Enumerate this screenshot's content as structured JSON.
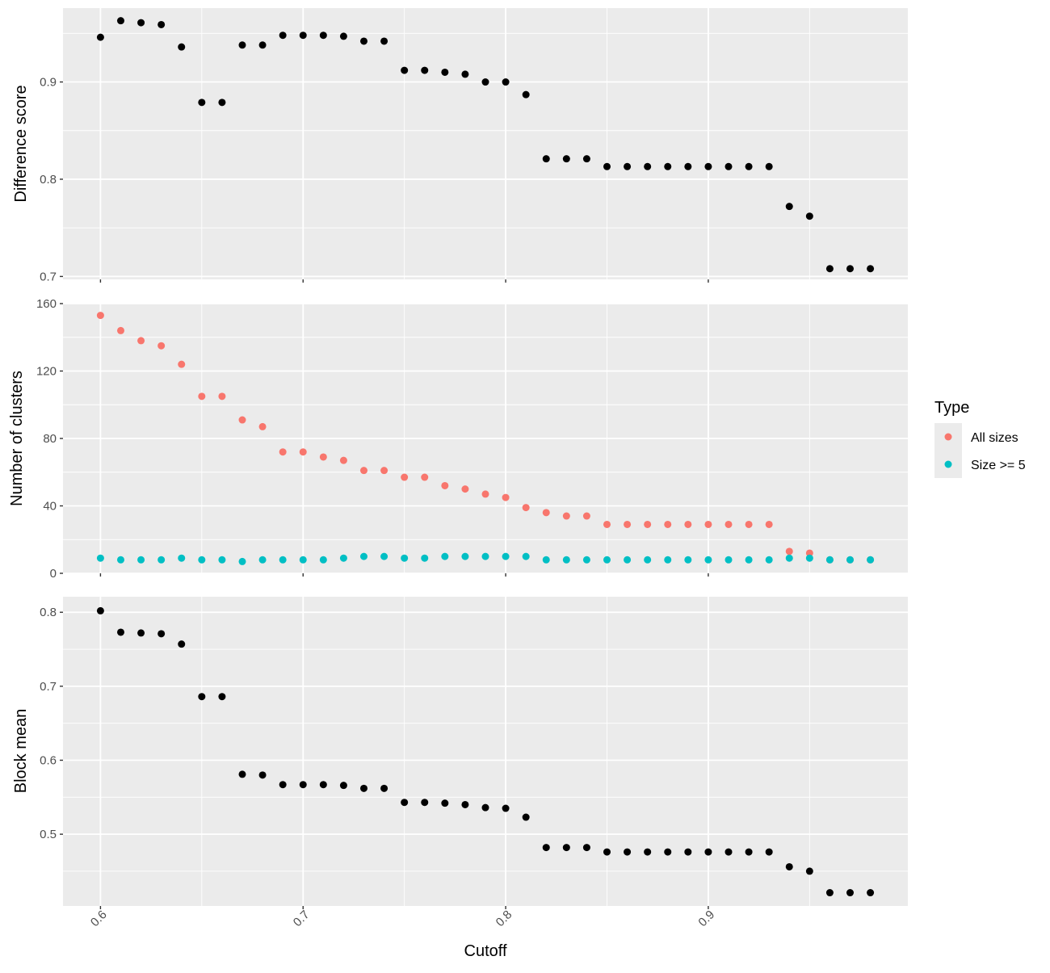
{
  "chart_data": [
    {
      "type": "scatter",
      "ylabel": "Difference score",
      "xlim": [
        0.5815,
        0.9985
      ],
      "ylim": [
        0.697,
        0.976
      ],
      "y_ticks": [
        0.7,
        0.8,
        0.9
      ],
      "y_tick_labels": [
        "0.7",
        "0.8",
        "0.9"
      ],
      "series": [
        {
          "color": "#000000",
          "points": [
            [
              0.6,
              0.946
            ],
            [
              0.61,
              0.963
            ],
            [
              0.62,
              0.961
            ],
            [
              0.63,
              0.959
            ],
            [
              0.64,
              0.936
            ],
            [
              0.65,
              0.879
            ],
            [
              0.66,
              0.879
            ],
            [
              0.67,
              0.938
            ],
            [
              0.68,
              0.938
            ],
            [
              0.69,
              0.948
            ],
            [
              0.7,
              0.948
            ],
            [
              0.71,
              0.948
            ],
            [
              0.72,
              0.947
            ],
            [
              0.73,
              0.942
            ],
            [
              0.74,
              0.942
            ],
            [
              0.75,
              0.912
            ],
            [
              0.76,
              0.912
            ],
            [
              0.77,
              0.91
            ],
            [
              0.78,
              0.908
            ],
            [
              0.79,
              0.9
            ],
            [
              0.8,
              0.9
            ],
            [
              0.81,
              0.887
            ],
            [
              0.82,
              0.821
            ],
            [
              0.83,
              0.821
            ],
            [
              0.84,
              0.821
            ],
            [
              0.85,
              0.813
            ],
            [
              0.86,
              0.813
            ],
            [
              0.87,
              0.813
            ],
            [
              0.88,
              0.813
            ],
            [
              0.89,
              0.813
            ],
            [
              0.9,
              0.813
            ],
            [
              0.91,
              0.813
            ],
            [
              0.92,
              0.813
            ],
            [
              0.93,
              0.813
            ],
            [
              0.94,
              0.772
            ],
            [
              0.95,
              0.762
            ],
            [
              0.96,
              0.708
            ],
            [
              0.97,
              0.708
            ],
            [
              0.98,
              0.708
            ]
          ]
        }
      ]
    },
    {
      "type": "scatter",
      "ylabel": "Number of clusters",
      "xlim": [
        0.5815,
        0.9985
      ],
      "ylim": [
        0,
        160
      ],
      "y_ticks": [
        0,
        40,
        80,
        120,
        160
      ],
      "y_tick_labels": [
        "0",
        "40",
        "80",
        "120",
        "160"
      ],
      "series": [
        {
          "name": "All sizes",
          "color": "#F8766D",
          "points": [
            [
              0.6,
              153
            ],
            [
              0.61,
              144
            ],
            [
              0.62,
              138
            ],
            [
              0.63,
              135
            ],
            [
              0.64,
              124
            ],
            [
              0.65,
              105
            ],
            [
              0.66,
              105
            ],
            [
              0.67,
              91
            ],
            [
              0.68,
              87
            ],
            [
              0.69,
              72
            ],
            [
              0.7,
              72
            ],
            [
              0.71,
              69
            ],
            [
              0.72,
              67
            ],
            [
              0.73,
              61
            ],
            [
              0.74,
              61
            ],
            [
              0.75,
              57
            ],
            [
              0.76,
              57
            ],
            [
              0.77,
              52
            ],
            [
              0.78,
              50
            ],
            [
              0.79,
              47
            ],
            [
              0.8,
              45
            ],
            [
              0.81,
              39
            ],
            [
              0.82,
              36
            ],
            [
              0.83,
              34
            ],
            [
              0.84,
              34
            ],
            [
              0.85,
              29
            ],
            [
              0.86,
              29
            ],
            [
              0.87,
              29
            ],
            [
              0.88,
              29
            ],
            [
              0.89,
              29
            ],
            [
              0.9,
              29
            ],
            [
              0.91,
              29
            ],
            [
              0.92,
              29
            ],
            [
              0.93,
              29
            ],
            [
              0.94,
              13
            ],
            [
              0.95,
              12
            ],
            [
              0.96,
              8
            ],
            [
              0.97,
              8
            ],
            [
              0.98,
              8
            ]
          ]
        },
        {
          "name": "Size >= 5",
          "color": "#00BFC4",
          "points": [
            [
              0.6,
              9
            ],
            [
              0.61,
              8
            ],
            [
              0.62,
              8
            ],
            [
              0.63,
              8
            ],
            [
              0.64,
              9
            ],
            [
              0.65,
              8
            ],
            [
              0.66,
              8
            ],
            [
              0.67,
              7
            ],
            [
              0.68,
              8
            ],
            [
              0.69,
              8
            ],
            [
              0.7,
              8
            ],
            [
              0.71,
              8
            ],
            [
              0.72,
              9
            ],
            [
              0.73,
              10
            ],
            [
              0.74,
              10
            ],
            [
              0.75,
              9
            ],
            [
              0.76,
              9
            ],
            [
              0.77,
              10
            ],
            [
              0.78,
              10
            ],
            [
              0.79,
              10
            ],
            [
              0.8,
              10
            ],
            [
              0.81,
              10
            ],
            [
              0.82,
              8
            ],
            [
              0.83,
              8
            ],
            [
              0.84,
              8
            ],
            [
              0.85,
              8
            ],
            [
              0.86,
              8
            ],
            [
              0.87,
              8
            ],
            [
              0.88,
              8
            ],
            [
              0.89,
              8
            ],
            [
              0.9,
              8
            ],
            [
              0.91,
              8
            ],
            [
              0.92,
              8
            ],
            [
              0.93,
              8
            ],
            [
              0.94,
              9
            ],
            [
              0.95,
              9
            ],
            [
              0.96,
              8
            ],
            [
              0.97,
              8
            ],
            [
              0.98,
              8
            ]
          ]
        }
      ]
    },
    {
      "type": "scatter",
      "ylabel": "Block mean",
      "xlabel": "Cutoff",
      "xlim": [
        0.5815,
        0.9985
      ],
      "ylim": [
        0.403,
        0.821
      ],
      "y_ticks": [
        0.5,
        0.6,
        0.7,
        0.8
      ],
      "y_tick_labels": [
        "0.5",
        "0.6",
        "0.7",
        "0.8"
      ],
      "x_ticks": [
        0.6,
        0.7,
        0.8,
        0.9
      ],
      "x_tick_labels": [
        "0.6",
        "0.7",
        "0.8",
        "0.9"
      ],
      "series": [
        {
          "color": "#000000",
          "points": [
            [
              0.6,
              0.802
            ],
            [
              0.61,
              0.773
            ],
            [
              0.62,
              0.772
            ],
            [
              0.63,
              0.771
            ],
            [
              0.64,
              0.757
            ],
            [
              0.65,
              0.686
            ],
            [
              0.66,
              0.686
            ],
            [
              0.67,
              0.581
            ],
            [
              0.68,
              0.58
            ],
            [
              0.69,
              0.567
            ],
            [
              0.7,
              0.567
            ],
            [
              0.71,
              0.567
            ],
            [
              0.72,
              0.566
            ],
            [
              0.73,
              0.562
            ],
            [
              0.74,
              0.562
            ],
            [
              0.75,
              0.543
            ],
            [
              0.76,
              0.543
            ],
            [
              0.77,
              0.542
            ],
            [
              0.78,
              0.54
            ],
            [
              0.79,
              0.536
            ],
            [
              0.8,
              0.535
            ],
            [
              0.81,
              0.523
            ],
            [
              0.82,
              0.482
            ],
            [
              0.83,
              0.482
            ],
            [
              0.84,
              0.482
            ],
            [
              0.85,
              0.476
            ],
            [
              0.86,
              0.476
            ],
            [
              0.87,
              0.476
            ],
            [
              0.88,
              0.476
            ],
            [
              0.89,
              0.476
            ],
            [
              0.9,
              0.476
            ],
            [
              0.91,
              0.476
            ],
            [
              0.92,
              0.476
            ],
            [
              0.93,
              0.476
            ],
            [
              0.94,
              0.456
            ],
            [
              0.95,
              0.45
            ],
            [
              0.96,
              0.421
            ],
            [
              0.97,
              0.421
            ],
            [
              0.98,
              0.421
            ]
          ]
        }
      ]
    }
  ],
  "legend": {
    "title": "Type",
    "items": [
      {
        "label": "All sizes",
        "color": "#F8766D"
      },
      {
        "label": "Size >= 5",
        "color": "#00BFC4"
      }
    ]
  }
}
